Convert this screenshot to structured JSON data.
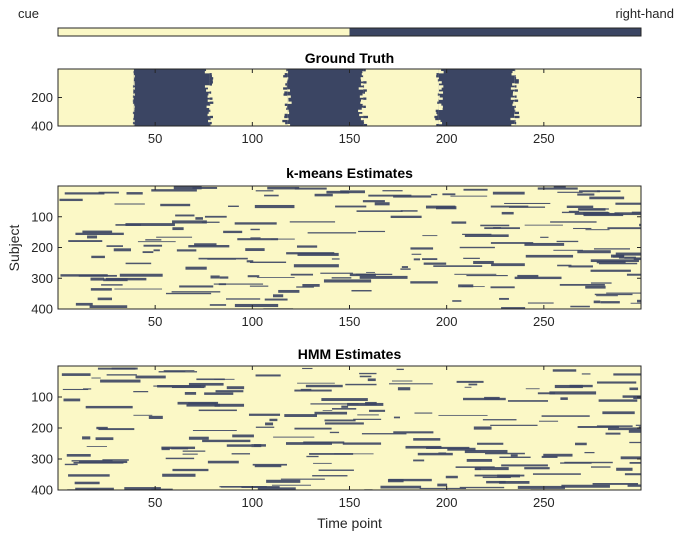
{
  "colors": {
    "state_a": "#fbf8c6",
    "state_b": "#3b4563"
  },
  "legend": {
    "left_label": "cue",
    "right_label": "right-hand",
    "split": 150,
    "x_max": 300
  },
  "chart_data": [
    {
      "type": "heatmap",
      "title": "Ground Truth",
      "xlabel": "",
      "ylabel": "",
      "xlim": [
        0,
        300
      ],
      "ylim": [
        0,
        400
      ],
      "xticks": [
        50,
        100,
        150,
        200,
        250
      ],
      "yticks": [
        200,
        400
      ],
      "states": [
        "cue",
        "right-hand"
      ],
      "segments": [
        {
          "state": "cue",
          "start": 0,
          "end": 39
        },
        {
          "state": "right-hand",
          "start": 39,
          "end": 78
        },
        {
          "state": "cue",
          "start": 78,
          "end": 118
        },
        {
          "state": "right-hand",
          "start": 118,
          "end": 157
        },
        {
          "state": "cue",
          "start": 157,
          "end": 196
        },
        {
          "state": "right-hand",
          "start": 196,
          "end": 235
        },
        {
          "state": "cue",
          "start": 235,
          "end": 300
        }
      ]
    },
    {
      "type": "heatmap",
      "title": "k-means Estimates",
      "xlabel": "",
      "ylabel": "Subject",
      "xlim": [
        0,
        300
      ],
      "ylim": [
        0,
        400
      ],
      "xticks": [
        50,
        100,
        150,
        200,
        250
      ],
      "yticks": [
        100,
        200,
        300,
        400
      ]
    },
    {
      "type": "heatmap",
      "title": "HMM Estimates",
      "xlabel": "Time point",
      "ylabel": "",
      "xlim": [
        0,
        300
      ],
      "ylim": [
        0,
        400
      ],
      "xticks": [
        50,
        100,
        150,
        200,
        250
      ],
      "yticks": [
        100,
        200,
        300,
        400
      ]
    }
  ]
}
